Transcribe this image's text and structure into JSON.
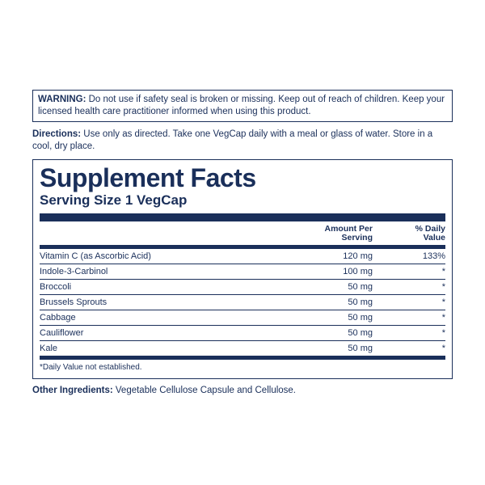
{
  "colors": {
    "text": "#1a2f5a",
    "rule": "#1a2f5a",
    "background": "#ffffff"
  },
  "warning": {
    "lead": "WARNING:",
    "text": " Do not use if safety seal is broken or missing. Keep out of reach of children. Keep your licensed health care practitioner informed when using this product."
  },
  "directions": {
    "lead": "Directions:",
    "text": " Use only as directed. Take one VegCap daily with a meal or glass of water. Store in a cool, dry place."
  },
  "facts": {
    "title": "Supplement Facts",
    "serving": "Serving Size 1 VegCap",
    "header_amount_l1": "Amount Per",
    "header_amount_l2": "Serving",
    "header_dv_l1": "% Daily",
    "header_dv_l2": "Value",
    "rows": [
      {
        "name": "Vitamin C (as Ascorbic Acid)",
        "amount": "120 mg",
        "dv": "133%"
      },
      {
        "name": "Indole-3-Carbinol",
        "amount": "100 mg",
        "dv": "*"
      },
      {
        "name": "Broccoli",
        "amount": "50 mg",
        "dv": "*"
      },
      {
        "name": "Brussels Sprouts",
        "amount": "50 mg",
        "dv": "*"
      },
      {
        "name": "Cabbage",
        "amount": "50 mg",
        "dv": "*"
      },
      {
        "name": "Cauliflower",
        "amount": "50 mg",
        "dv": "*"
      },
      {
        "name": "Kale",
        "amount": "50 mg",
        "dv": "*"
      }
    ],
    "footnote": "*Daily Value not established."
  },
  "other": {
    "lead": "Other Ingredients:",
    "text": " Vegetable Cellulose Capsule and Cellulose."
  }
}
